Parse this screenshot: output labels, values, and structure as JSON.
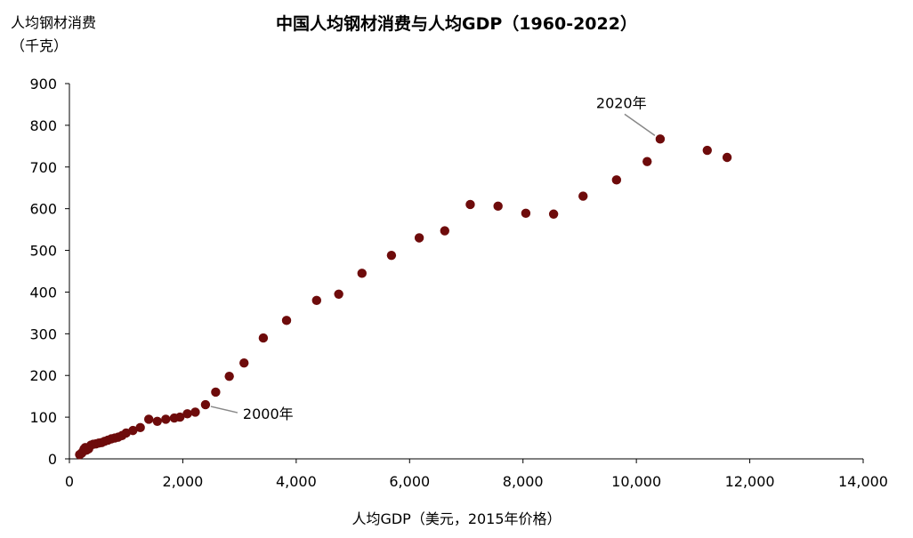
{
  "chart_data": {
    "type": "scatter",
    "title": "中国人均钢材消费与人均GDP（1960-2022）",
    "ylabel": [
      "人均钢材消费",
      "（千克）"
    ],
    "xlabel": "人均GDP（美元，2015年价格）",
    "xlim": [
      0,
      14000
    ],
    "ylim": [
      0,
      900
    ],
    "xticks": [
      0,
      2000,
      4000,
      6000,
      8000,
      10000,
      12000,
      14000
    ],
    "xtick_labels": [
      "0",
      "2,000",
      "4,000",
      "6,000",
      "8,000",
      "10,000",
      "12,000",
      "14,000"
    ],
    "yticks": [
      0,
      100,
      200,
      300,
      400,
      500,
      600,
      700,
      800,
      900
    ],
    "ytick_labels": [
      "0",
      "100",
      "200",
      "300",
      "400",
      "500",
      "600",
      "700",
      "800",
      "900"
    ],
    "marker_color": "#6e0b0b",
    "points": [
      {
        "x": 180,
        "y": 10
      },
      {
        "x": 200,
        "y": 12
      },
      {
        "x": 220,
        "y": 14
      },
      {
        "x": 240,
        "y": 18
      },
      {
        "x": 260,
        "y": 24
      },
      {
        "x": 280,
        "y": 27
      },
      {
        "x": 300,
        "y": 21
      },
      {
        "x": 340,
        "y": 24
      },
      {
        "x": 380,
        "y": 33
      },
      {
        "x": 420,
        "y": 35
      },
      {
        "x": 470,
        "y": 36
      },
      {
        "x": 520,
        "y": 38
      },
      {
        "x": 570,
        "y": 39
      },
      {
        "x": 620,
        "y": 42
      },
      {
        "x": 680,
        "y": 45
      },
      {
        "x": 740,
        "y": 48
      },
      {
        "x": 800,
        "y": 50
      },
      {
        "x": 860,
        "y": 52
      },
      {
        "x": 930,
        "y": 56
      },
      {
        "x": 1000,
        "y": 62
      },
      {
        "x": 1120,
        "y": 68
      },
      {
        "x": 1250,
        "y": 75
      },
      {
        "x": 1400,
        "y": 95
      },
      {
        "x": 1550,
        "y": 90
      },
      {
        "x": 1700,
        "y": 95
      },
      {
        "x": 1850,
        "y": 98
      },
      {
        "x": 1950,
        "y": 100
      },
      {
        "x": 2080,
        "y": 108
      },
      {
        "x": 2220,
        "y": 112
      },
      {
        "x": 2400,
        "y": 130
      },
      {
        "x": 2580,
        "y": 160
      },
      {
        "x": 2820,
        "y": 198
      },
      {
        "x": 3080,
        "y": 230
      },
      {
        "x": 3420,
        "y": 290
      },
      {
        "x": 3830,
        "y": 332
      },
      {
        "x": 4360,
        "y": 380
      },
      {
        "x": 4750,
        "y": 395
      },
      {
        "x": 5160,
        "y": 445
      },
      {
        "x": 5680,
        "y": 488
      },
      {
        "x": 6170,
        "y": 530
      },
      {
        "x": 6620,
        "y": 547
      },
      {
        "x": 7070,
        "y": 610
      },
      {
        "x": 7560,
        "y": 606
      },
      {
        "x": 8050,
        "y": 589
      },
      {
        "x": 8540,
        "y": 587
      },
      {
        "x": 9060,
        "y": 630
      },
      {
        "x": 9650,
        "y": 669
      },
      {
        "x": 10190,
        "y": 713
      },
      {
        "x": 10420,
        "y": 767
      },
      {
        "x": 11250,
        "y": 740
      },
      {
        "x": 11600,
        "y": 723
      }
    ],
    "annotations": [
      {
        "text": "2000年",
        "x": 2400,
        "y": 130
      },
      {
        "text": "2020年",
        "x": 10420,
        "y": 767
      }
    ]
  }
}
